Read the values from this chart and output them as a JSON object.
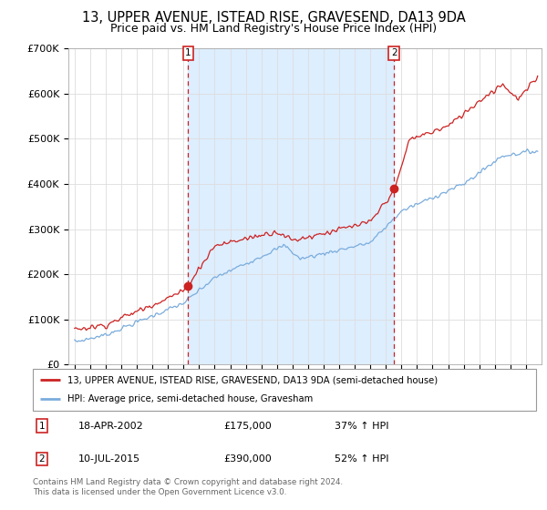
{
  "title": "13, UPPER AVENUE, ISTEAD RISE, GRAVESEND, DA13 9DA",
  "subtitle": "Price paid vs. HM Land Registry's House Price Index (HPI)",
  "ylim": [
    0,
    700000
  ],
  "yticks": [
    0,
    100000,
    200000,
    300000,
    400000,
    500000,
    600000,
    700000
  ],
  "ytick_labels": [
    "£0",
    "£100K",
    "£200K",
    "£300K",
    "£400K",
    "£500K",
    "£600K",
    "£700K"
  ],
  "xlim_left": 1994.6,
  "xlim_right": 2025.0,
  "sale1_date": 2002.3,
  "sale1_price": 175000,
  "sale1_label": "1",
  "sale2_date": 2015.53,
  "sale2_price": 390000,
  "sale2_label": "2",
  "red_line_color": "#cc2222",
  "blue_line_color": "#7aacdc",
  "shade_color": "#ddeeff",
  "annotation_box_color": "#cc2222",
  "grid_color": "#dddddd",
  "background_color": "#ffffff",
  "legend_label_red": "13, UPPER AVENUE, ISTEAD RISE, GRAVESEND, DA13 9DA (semi-detached house)",
  "legend_label_blue": "HPI: Average price, semi-detached house, Gravesham",
  "info1_num": "1",
  "info1_date": "18-APR-2002",
  "info1_price": "£175,000",
  "info1_hpi": "37% ↑ HPI",
  "info2_num": "2",
  "info2_date": "10-JUL-2015",
  "info2_price": "£390,000",
  "info2_hpi": "52% ↑ HPI",
  "footer": "Contains HM Land Registry data © Crown copyright and database right 2024.\nThis data is licensed under the Open Government Licence v3.0.",
  "title_fontsize": 10.5,
  "subtitle_fontsize": 9
}
